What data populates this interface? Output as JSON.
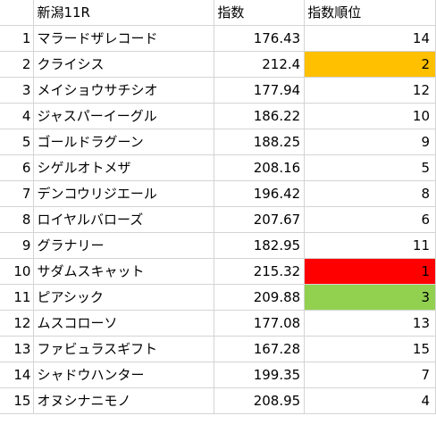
{
  "header": {
    "rownum": "",
    "name": "新潟11R",
    "score": "指数",
    "rank": "指数順位"
  },
  "colors": {
    "rank_1": "#ff0000",
    "rank_2": "#ffc000",
    "rank_3": "#92d050"
  },
  "rows": [
    {
      "num": "1",
      "name": "マラードザレコード",
      "score": "176.43",
      "rank": "14"
    },
    {
      "num": "2",
      "name": "クライシス",
      "score": "212.4",
      "rank": "2"
    },
    {
      "num": "3",
      "name": "メイショウサチシオ",
      "score": "177.94",
      "rank": "12"
    },
    {
      "num": "4",
      "name": "ジャスパーイーグル",
      "score": "186.22",
      "rank": "10"
    },
    {
      "num": "5",
      "name": "ゴールドラグーン",
      "score": "188.25",
      "rank": "9"
    },
    {
      "num": "6",
      "name": "シゲルオトメザ",
      "score": "208.16",
      "rank": "5"
    },
    {
      "num": "7",
      "name": "デンコウリジエール",
      "score": "196.42",
      "rank": "8"
    },
    {
      "num": "8",
      "name": "ロイヤルバローズ",
      "score": "207.67",
      "rank": "6"
    },
    {
      "num": "9",
      "name": "グラナリー",
      "score": "182.95",
      "rank": "11"
    },
    {
      "num": "10",
      "name": "サダムスキャット",
      "score": "215.32",
      "rank": "1"
    },
    {
      "num": "11",
      "name": "ピアシック",
      "score": "209.88",
      "rank": "3"
    },
    {
      "num": "12",
      "name": "ムスコローソ",
      "score": "177.08",
      "rank": "13"
    },
    {
      "num": "13",
      "name": "ファビュラスギフト",
      "score": "167.28",
      "rank": "15"
    },
    {
      "num": "14",
      "name": "シャドウハンター",
      "score": "199.35",
      "rank": "7"
    },
    {
      "num": "15",
      "name": "オヌシナニモノ",
      "score": "208.95",
      "rank": "4"
    }
  ]
}
